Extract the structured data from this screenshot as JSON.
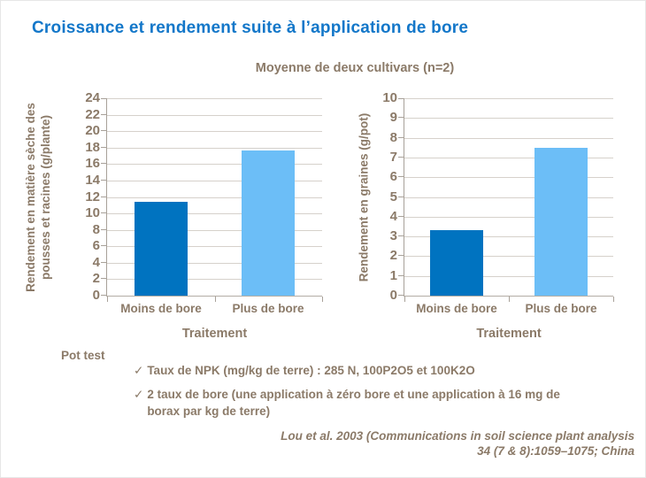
{
  "slide": {
    "title": "Croissance et rendement suite à l’application de bore",
    "subtitle": "Moyenne de deux cultivars (n=2)",
    "colors": {
      "title_blue": "#1377c9",
      "text_brown": "#8b7a68",
      "bar_dark_blue": "#0073c0",
      "bar_light_blue": "#6cbef7",
      "gridline": "#d6d1cb",
      "axis": "#a8a199"
    }
  },
  "chart_data": [
    {
      "type": "bar",
      "categories": [
        "Moins de bore",
        "Plus de bore"
      ],
      "values": [
        11.4,
        17.6
      ],
      "bar_colors": [
        "#0073c0",
        "#6cbef7"
      ],
      "title": "",
      "xlabel": "Traitement",
      "ylabel": "Rendement en matière sèche des pousses et racines (g/plante)",
      "ylim": [
        0,
        24
      ],
      "ytick_step": 2,
      "grid": true,
      "legend": "none"
    },
    {
      "type": "bar",
      "categories": [
        "Moins de bore",
        "Plus de bore"
      ],
      "values": [
        3.3,
        7.5
      ],
      "bar_colors": [
        "#0073c0",
        "#6cbef7"
      ],
      "title": "",
      "xlabel": "Traitement",
      "ylabel": "Rendement en graines (g/pot)",
      "ylim": [
        0,
        10
      ],
      "ytick_step": 1,
      "grid": true,
      "legend": "none"
    }
  ],
  "notes": {
    "pot_test_label": "Pot test",
    "check_icon": "✓",
    "bullets": [
      "Taux de NPK (mg/kg de terre) : 285 N, 100P2O5 et 100K2O",
      "2 taux de bore (une application à zéro bore et une application à 16 mg de borax par kg de terre)"
    ]
  },
  "citation": {
    "line1": "Lou et al. 2003 (Communications in soil science plant analysis",
    "line2": "34 (7 & 8):1059–1075; China"
  }
}
